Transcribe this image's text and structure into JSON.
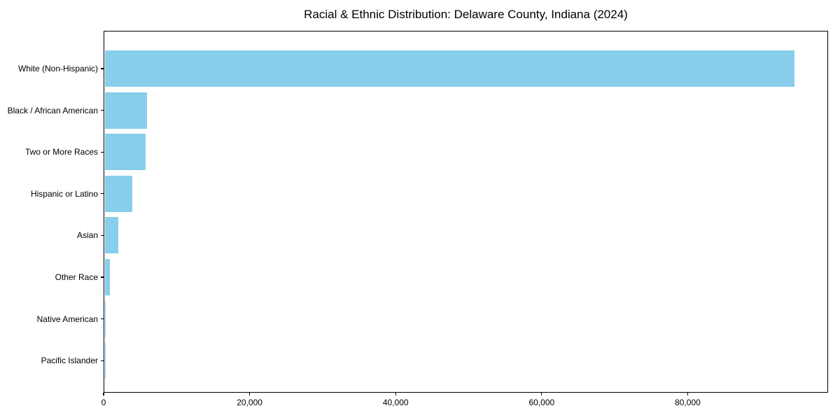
{
  "title": "Racial & Ethnic Distribution: Delaware County, Indiana (2024)",
  "chart_data": {
    "type": "bar",
    "orientation": "horizontal",
    "title": "Racial & Ethnic Distribution: Delaware County, Indiana (2024)",
    "xlabel": "",
    "ylabel": "",
    "categories": [
      "White (Non-Hispanic)",
      "Black / African American",
      "Two or More Races",
      "Hispanic or Latino",
      "Asian",
      "Other Race",
      "Native American",
      "Pacific Islander"
    ],
    "values": [
      94500,
      5800,
      5600,
      3800,
      1900,
      700,
      150,
      40
    ],
    "xlim": [
      0,
      99225
    ],
    "x_ticks": [
      0,
      20000,
      40000,
      60000,
      80000
    ],
    "x_tick_labels": [
      "0",
      "20,000",
      "40,000",
      "60,000",
      "80,000"
    ],
    "grid": false,
    "legend": false,
    "bar_color": "#87CEEB",
    "background_color": "#ffffff",
    "text_color": "#000000",
    "spine_color": "#000000"
  }
}
